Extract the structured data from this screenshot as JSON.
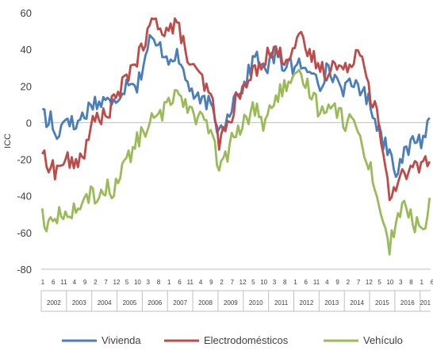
{
  "chart_data": {
    "type": "line",
    "title": "",
    "xlabel": "",
    "ylabel": "ICC",
    "ylim": [
      -80,
      60
    ],
    "yticks": [
      "60",
      "40",
      "20",
      "0",
      "-20",
      "-40",
      "-60",
      "-80"
    ],
    "x_start_month": "2002-01",
    "x_end_month": "2017-05",
    "month_tick_labels": [
      "1",
      "6",
      "11",
      "4",
      "9",
      "2",
      "7",
      "12",
      "5",
      "10",
      "3",
      "8",
      "1",
      "6",
      "11",
      "4",
      "9",
      "2",
      "7",
      "12",
      "5",
      "10",
      "3",
      "8",
      "1",
      "6",
      "11",
      "4",
      "9",
      "2",
      "7",
      "12",
      "5",
      "10",
      "3",
      "8",
      "1",
      "6"
    ],
    "year_labels": [
      "2002",
      "2003",
      "2004",
      "2005",
      "2006",
      "2007",
      "2008",
      "2009",
      "2010",
      "2011",
      "2012",
      "2013",
      "2014",
      "2015",
      "2016",
      "201"
    ],
    "gridlines": false,
    "legend_position": "bottom",
    "colors": {
      "axis": "#bfbfbf",
      "text": "#404040"
    },
    "series": [
      {
        "name": "Vivienda",
        "color": "#4a7ebb",
        "points": [
          [
            "2002-01",
            10
          ],
          [
            "2002-03",
            -2
          ],
          [
            "2002-05",
            4
          ],
          [
            "2002-07",
            -8
          ],
          [
            "2002-10",
            -2
          ],
          [
            "2003-01",
            5
          ],
          [
            "2003-04",
            -3
          ],
          [
            "2003-07",
            2
          ],
          [
            "2003-10",
            6
          ],
          [
            "2004-01",
            12
          ],
          [
            "2004-04",
            10
          ],
          [
            "2004-07",
            14
          ],
          [
            "2004-10",
            8
          ],
          [
            "2005-01",
            15
          ],
          [
            "2005-04",
            20
          ],
          [
            "2005-07",
            25
          ],
          [
            "2005-10",
            20
          ],
          [
            "2006-01",
            32
          ],
          [
            "2006-04",
            45
          ],
          [
            "2006-07",
            42
          ],
          [
            "2006-10",
            40
          ],
          [
            "2007-01",
            35
          ],
          [
            "2007-04",
            38
          ],
          [
            "2007-07",
            30
          ],
          [
            "2007-10",
            22
          ],
          [
            "2008-01",
            15
          ],
          [
            "2008-04",
            10
          ],
          [
            "2008-07",
            12
          ],
          [
            "2008-10",
            5
          ],
          [
            "2009-01",
            -5
          ],
          [
            "2009-04",
            2
          ],
          [
            "2009-07",
            10
          ],
          [
            "2009-10",
            18
          ],
          [
            "2010-01",
            20
          ],
          [
            "2010-04",
            30
          ],
          [
            "2010-07",
            38
          ],
          [
            "2010-10",
            28
          ],
          [
            "2011-01",
            32
          ],
          [
            "2011-04",
            38
          ],
          [
            "2011-07",
            30
          ],
          [
            "2011-10",
            35
          ],
          [
            "2012-01",
            28
          ],
          [
            "2012-04",
            32
          ],
          [
            "2012-07",
            25
          ],
          [
            "2012-10",
            30
          ],
          [
            "2013-01",
            22
          ],
          [
            "2013-04",
            28
          ],
          [
            "2013-07",
            26
          ],
          [
            "2013-10",
            22
          ],
          [
            "2014-01",
            18
          ],
          [
            "2014-04",
            20
          ],
          [
            "2014-07",
            22
          ],
          [
            "2014-10",
            15
          ],
          [
            "2015-01",
            10
          ],
          [
            "2015-04",
            0
          ],
          [
            "2015-07",
            -10
          ],
          [
            "2015-10",
            -15
          ],
          [
            "2016-01",
            -25
          ],
          [
            "2016-04",
            -20
          ],
          [
            "2016-07",
            -15
          ],
          [
            "2016-10",
            -8
          ],
          [
            "2017-01",
            -10
          ],
          [
            "2017-03",
            -5
          ],
          [
            "2017-05",
            2
          ]
        ]
      },
      {
        "name": "Electrodomésticos",
        "color": "#be4b48",
        "points": [
          [
            "2002-01",
            -15
          ],
          [
            "2002-03",
            -25
          ],
          [
            "2002-05",
            -20
          ],
          [
            "2002-07",
            -28
          ],
          [
            "2002-10",
            -22
          ],
          [
            "2003-01",
            -20
          ],
          [
            "2003-04",
            -25
          ],
          [
            "2003-07",
            -18
          ],
          [
            "2003-10",
            -14
          ],
          [
            "2004-01",
            0
          ],
          [
            "2004-04",
            5
          ],
          [
            "2004-07",
            2
          ],
          [
            "2004-10",
            10
          ],
          [
            "2005-01",
            15
          ],
          [
            "2005-04",
            22
          ],
          [
            "2005-07",
            30
          ],
          [
            "2005-10",
            35
          ],
          [
            "2006-01",
            40
          ],
          [
            "2006-04",
            52
          ],
          [
            "2006-07",
            56
          ],
          [
            "2006-10",
            52
          ],
          [
            "2007-01",
            50
          ],
          [
            "2007-04",
            54
          ],
          [
            "2007-07",
            48
          ],
          [
            "2007-10",
            35
          ],
          [
            "2008-01",
            28
          ],
          [
            "2008-04",
            25
          ],
          [
            "2008-07",
            18
          ],
          [
            "2008-10",
            10
          ],
          [
            "2009-01",
            -10
          ],
          [
            "2009-04",
            -5
          ],
          [
            "2009-07",
            5
          ],
          [
            "2009-10",
            15
          ],
          [
            "2010-01",
            18
          ],
          [
            "2010-04",
            25
          ],
          [
            "2010-07",
            30
          ],
          [
            "2010-10",
            35
          ],
          [
            "2011-01",
            38
          ],
          [
            "2011-04",
            40
          ],
          [
            "2011-07",
            35
          ],
          [
            "2011-10",
            38
          ],
          [
            "2012-01",
            42
          ],
          [
            "2012-04",
            45
          ],
          [
            "2012-07",
            38
          ],
          [
            "2012-10",
            35
          ],
          [
            "2013-01",
            30
          ],
          [
            "2013-04",
            28
          ],
          [
            "2013-07",
            32
          ],
          [
            "2013-10",
            30
          ],
          [
            "2014-01",
            28
          ],
          [
            "2014-04",
            35
          ],
          [
            "2014-07",
            40
          ],
          [
            "2014-10",
            35
          ],
          [
            "2015-01",
            15
          ],
          [
            "2015-04",
            5
          ],
          [
            "2015-07",
            -20
          ],
          [
            "2015-10",
            -40
          ],
          [
            "2016-01",
            -35
          ],
          [
            "2016-04",
            -25
          ],
          [
            "2016-07",
            -30
          ],
          [
            "2016-10",
            -22
          ],
          [
            "2017-01",
            -25
          ],
          [
            "2017-03",
            -18
          ],
          [
            "2017-05",
            -20
          ]
        ]
      },
      {
        "name": "Vehículo",
        "color": "#9bbb59",
        "points": [
          [
            "2002-01",
            -45
          ],
          [
            "2002-03",
            -62
          ],
          [
            "2002-05",
            -50
          ],
          [
            "2002-07",
            -55
          ],
          [
            "2002-10",
            -48
          ],
          [
            "2003-01",
            -52
          ],
          [
            "2003-04",
            -45
          ],
          [
            "2003-07",
            -50
          ],
          [
            "2003-10",
            -42
          ],
          [
            "2004-01",
            -38
          ],
          [
            "2004-04",
            -42
          ],
          [
            "2004-07",
            -35
          ],
          [
            "2004-10",
            -38
          ],
          [
            "2005-01",
            -30
          ],
          [
            "2005-04",
            -22
          ],
          [
            "2005-07",
            -18
          ],
          [
            "2005-10",
            -10
          ],
          [
            "2006-01",
            -5
          ],
          [
            "2006-04",
            0
          ],
          [
            "2006-07",
            2
          ],
          [
            "2006-10",
            5
          ],
          [
            "2007-01",
            10
          ],
          [
            "2007-04",
            18
          ],
          [
            "2007-07",
            15
          ],
          [
            "2007-10",
            10
          ],
          [
            "2008-01",
            5
          ],
          [
            "2008-04",
            2
          ],
          [
            "2008-07",
            0
          ],
          [
            "2008-10",
            -10
          ],
          [
            "2009-01",
            -25
          ],
          [
            "2009-04",
            -20
          ],
          [
            "2009-07",
            -10
          ],
          [
            "2009-10",
            -5
          ],
          [
            "2010-01",
            0
          ],
          [
            "2010-04",
            5
          ],
          [
            "2010-07",
            10
          ],
          [
            "2010-10",
            -2
          ],
          [
            "2011-01",
            5
          ],
          [
            "2011-04",
            15
          ],
          [
            "2011-07",
            18
          ],
          [
            "2011-10",
            20
          ],
          [
            "2012-01",
            22
          ],
          [
            "2012-04",
            25
          ],
          [
            "2012-07",
            20
          ],
          [
            "2012-10",
            15
          ],
          [
            "2013-01",
            5
          ],
          [
            "2013-04",
            10
          ],
          [
            "2013-07",
            12
          ],
          [
            "2013-10",
            5
          ],
          [
            "2014-01",
            0
          ],
          [
            "2014-04",
            2
          ],
          [
            "2014-07",
            -5
          ],
          [
            "2014-10",
            -15
          ],
          [
            "2015-01",
            -25
          ],
          [
            "2015-04",
            -40
          ],
          [
            "2015-07",
            -55
          ],
          [
            "2015-10",
            -68
          ],
          [
            "2016-01",
            -55
          ],
          [
            "2016-04",
            -45
          ],
          [
            "2016-07",
            -50
          ],
          [
            "2016-10",
            -55
          ],
          [
            "2017-01",
            -58
          ],
          [
            "2017-03",
            -60
          ],
          [
            "2017-05",
            -38
          ]
        ]
      }
    ]
  }
}
